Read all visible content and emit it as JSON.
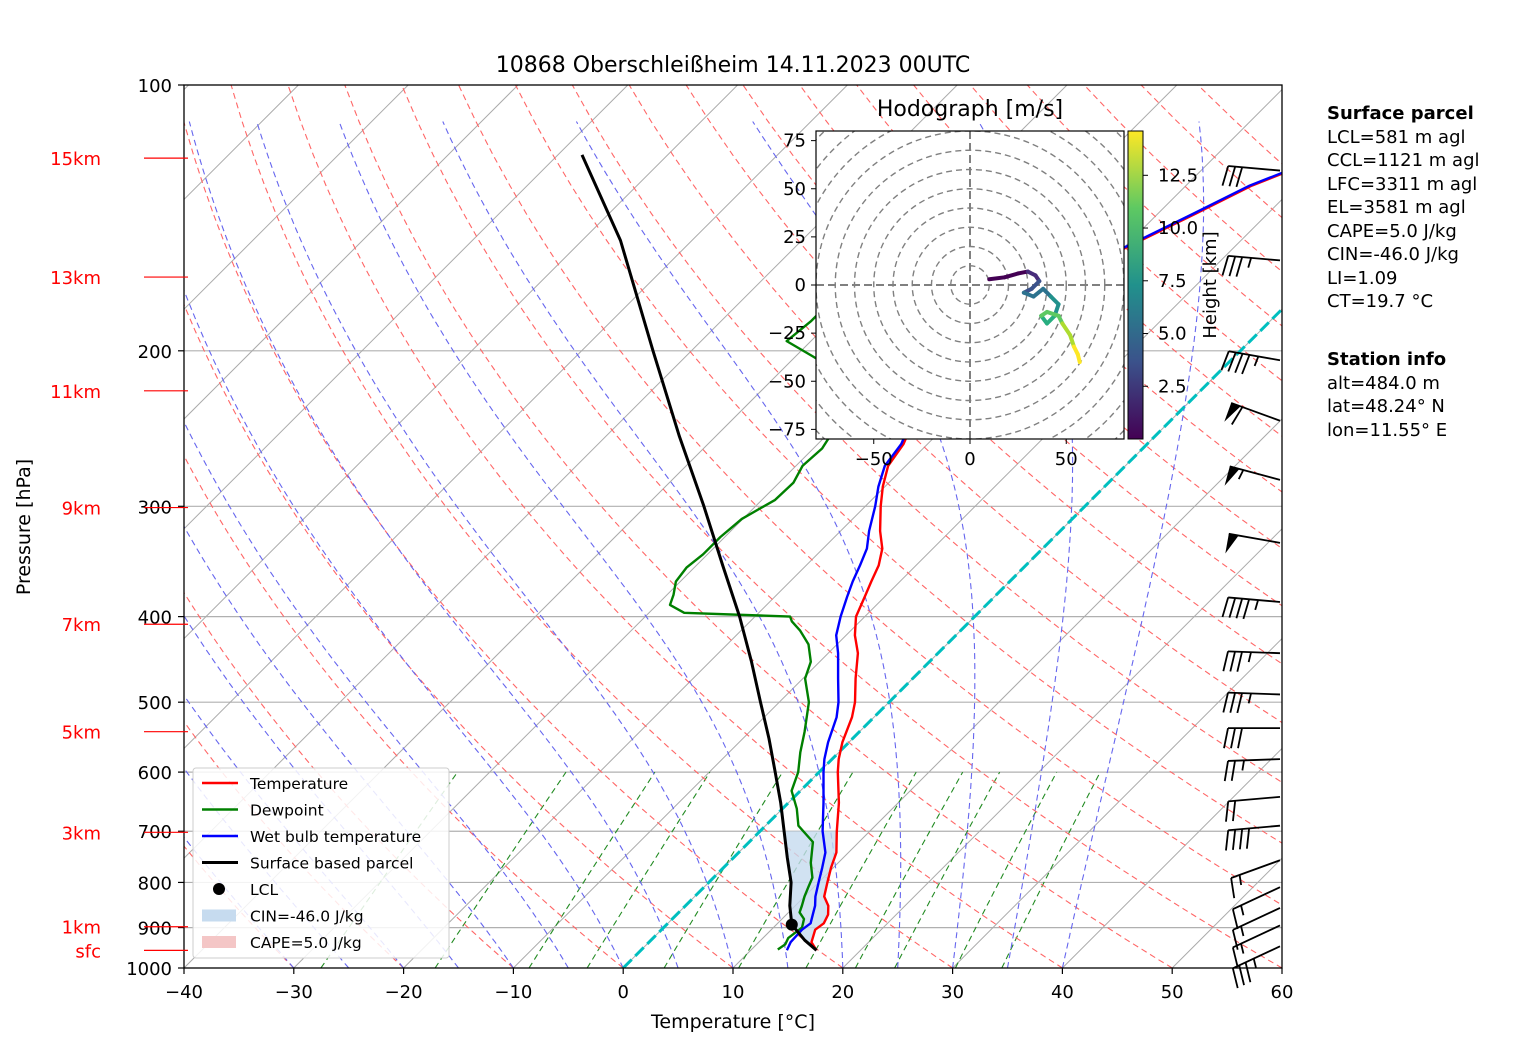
{
  "title": "10868 Oberschleißheim 14.11.2023 00UTC",
  "colors": {
    "temperature": "#ff0000",
    "dewpoint": "#008000",
    "wetbulb": "#0000ff",
    "parcel": "#000000",
    "heights": "#ff0000",
    "dry_adiabat": "#ff6666",
    "moist_adiabat": "#6666ee",
    "mixing_ratio": "#228b22",
    "isotherm": "#aaaaaa",
    "zero_isotherm": "#00bfbf",
    "cin_fill": "#c6dbef",
    "cape_fill": "#f4c6c6"
  },
  "chart_data": {
    "type": "line",
    "subtype": "skew-t log-p diagram",
    "title": "10868 Oberschleißheim 14.11.2023 00UTC",
    "xlabel": "Temperature [°C]",
    "ylabel": "Pressure [hPa]",
    "xlim": [
      -40,
      60
    ],
    "ylim": [
      1000,
      100
    ],
    "y_scale": "log",
    "grid": true,
    "x_ticks": [
      "−40",
      "−30",
      "−20",
      "−10",
      "0",
      "10",
      "20",
      "30",
      "40",
      "50",
      "60"
    ],
    "y_ticks": [
      {
        "p": 100,
        "label": "100"
      },
      {
        "p": 200,
        "label": "200"
      },
      {
        "p": 300,
        "label": "300"
      },
      {
        "p": 400,
        "label": "400"
      },
      {
        "p": 500,
        "label": "500"
      },
      {
        "p": 600,
        "label": "600"
      },
      {
        "p": 700,
        "label": "700"
      },
      {
        "p": 800,
        "label": "800"
      },
      {
        "p": 900,
        "label": "900"
      },
      {
        "p": 1000,
        "label": "1000"
      }
    ],
    "height_labels": [
      {
        "label": "15km",
        "p": 121
      },
      {
        "label": "13km",
        "p": 165
      },
      {
        "label": "11km",
        "p": 222
      },
      {
        "label": "9km",
        "p": 301
      },
      {
        "label": "7km",
        "p": 408
      },
      {
        "label": "5km",
        "p": 540
      },
      {
        "label": "3km",
        "p": 702
      },
      {
        "label": "1km",
        "p": 898
      },
      {
        "label": "sfc",
        "p": 955
      }
    ],
    "legend_position": "lower-left",
    "legend": [
      {
        "label": "Temperature",
        "kind": "line",
        "color": "#ff0000"
      },
      {
        "label": "Dewpoint",
        "kind": "line",
        "color": "#008000"
      },
      {
        "label": "Wet bulb temperature",
        "kind": "line",
        "color": "#0000ff"
      },
      {
        "label": "Surface based parcel",
        "kind": "line",
        "color": "#000000"
      },
      {
        "label": "LCL",
        "kind": "dot",
        "color": "#000000"
      },
      {
        "label": "CIN=-46.0 J/kg",
        "kind": "patch",
        "color": "#c6dbef"
      },
      {
        "label": "CAPE=5.0 J/kg",
        "kind": "patch",
        "color": "#f4c6c6"
      }
    ],
    "series": [
      {
        "key": "temperature",
        "points": [
          [
            955,
            16.0
          ],
          [
            935,
            14.8
          ],
          [
            905,
            14.0
          ],
          [
            890,
            14.2
          ],
          [
            870,
            13.8
          ],
          [
            850,
            13.0
          ],
          [
            830,
            11.8
          ],
          [
            800,
            10.8
          ],
          [
            770,
            9.8
          ],
          [
            740,
            8.9
          ],
          [
            700,
            7.0
          ],
          [
            650,
            4.6
          ],
          [
            600,
            1.7
          ],
          [
            580,
            0.6
          ],
          [
            555,
            -0.6
          ],
          [
            520,
            -2.0
          ],
          [
            500,
            -3.1
          ],
          [
            470,
            -5.2
          ],
          [
            440,
            -7.3
          ],
          [
            420,
            -9.2
          ],
          [
            400,
            -10.8
          ],
          [
            380,
            -11.8
          ],
          [
            365,
            -12.6
          ],
          [
            350,
            -13.4
          ],
          [
            335,
            -14.6
          ],
          [
            320,
            -16.4
          ],
          [
            300,
            -18.6
          ],
          [
            285,
            -20.2
          ],
          [
            270,
            -21.6
          ],
          [
            255,
            -22.2
          ],
          [
            240,
            -23.4
          ],
          [
            225,
            -25.4
          ],
          [
            214,
            -26.4
          ],
          [
            205,
            -25.6
          ],
          [
            197,
            -23.4
          ],
          [
            185,
            -23.2
          ],
          [
            178,
            -24.0
          ],
          [
            172,
            -24.2
          ],
          [
            162,
            -22.2
          ],
          [
            152,
            -19.6
          ],
          [
            140,
            -16.6
          ],
          [
            130,
            -14.0
          ],
          [
            122,
            -10.6
          ],
          [
            116,
            -8.4
          ],
          [
            111,
            -7.4
          ],
          [
            108,
            -7.8
          ]
        ]
      },
      {
        "key": "dewpoint",
        "points": [
          [
            953,
            12.4
          ],
          [
            940,
            12.6
          ],
          [
            925,
            12.3
          ],
          [
            900,
            12.6
          ],
          [
            880,
            12.0
          ],
          [
            865,
            11.0
          ],
          [
            850,
            10.6
          ],
          [
            830,
            10.0
          ],
          [
            810,
            9.5
          ],
          [
            790,
            9.0
          ],
          [
            760,
            7.5
          ],
          [
            720,
            5.8
          ],
          [
            690,
            3.0
          ],
          [
            660,
            1.3
          ],
          [
            630,
            -0.8
          ],
          [
            600,
            -1.9
          ],
          [
            570,
            -3.5
          ],
          [
            540,
            -5.0
          ],
          [
            500,
            -7.3
          ],
          [
            470,
            -9.8
          ],
          [
            450,
            -10.8
          ],
          [
            430,
            -12.6
          ],
          [
            415,
            -14.6
          ],
          [
            405,
            -16.2
          ],
          [
            400,
            -16.8
          ],
          [
            396,
            -26.8
          ],
          [
            388,
            -28.8
          ],
          [
            378,
            -29.4
          ],
          [
            365,
            -30.4
          ],
          [
            352,
            -30.7
          ],
          [
            340,
            -30.4
          ],
          [
            325,
            -30.4
          ],
          [
            310,
            -30.1
          ],
          [
            295,
            -28.8
          ],
          [
            282,
            -28.7
          ],
          [
            270,
            -29.4
          ],
          [
            258,
            -29.2
          ],
          [
            246,
            -29.8
          ],
          [
            235,
            -31.2
          ],
          [
            223,
            -32.4
          ],
          [
            212,
            -34.4
          ],
          [
            203,
            -38.4
          ],
          [
            195,
            -42.2
          ],
          [
            185,
            -41.8
          ],
          [
            172,
            -41.8
          ],
          [
            160,
            -42.2
          ],
          [
            145,
            -40.8
          ],
          [
            133,
            -38.0
          ],
          [
            122,
            -35.6
          ],
          [
            115,
            -34.4
          ]
        ]
      },
      {
        "key": "wetbulb",
        "points": [
          [
            955,
            13.3
          ],
          [
            935,
            12.9
          ],
          [
            905,
            12.8
          ],
          [
            890,
            13.0
          ],
          [
            870,
            12.4
          ],
          [
            850,
            11.8
          ],
          [
            830,
            11.0
          ],
          [
            800,
            10.0
          ],
          [
            770,
            9.0
          ],
          [
            740,
            7.9
          ],
          [
            700,
            5.7
          ],
          [
            650,
            3.2
          ],
          [
            600,
            0.4
          ],
          [
            580,
            -0.7
          ],
          [
            555,
            -1.9
          ],
          [
            520,
            -3.4
          ],
          [
            500,
            -4.6
          ],
          [
            470,
            -6.8
          ],
          [
            440,
            -9.1
          ],
          [
            420,
            -10.9
          ],
          [
            400,
            -12.2
          ],
          [
            380,
            -13.4
          ],
          [
            365,
            -14.3
          ],
          [
            350,
            -15.1
          ],
          [
            335,
            -16.0
          ],
          [
            320,
            -17.4
          ],
          [
            300,
            -19.1
          ],
          [
            285,
            -20.6
          ],
          [
            270,
            -21.9
          ],
          [
            255,
            -22.4
          ],
          [
            240,
            -23.6
          ],
          [
            225,
            -25.7
          ],
          [
            214,
            -26.6
          ],
          [
            205,
            -25.8
          ],
          [
            197,
            -23.6
          ],
          [
            185,
            -23.4
          ],
          [
            178,
            -24.2
          ],
          [
            172,
            -24.4
          ],
          [
            162,
            -22.4
          ],
          [
            152,
            -19.8
          ],
          [
            140,
            -16.8
          ],
          [
            130,
            -14.2
          ],
          [
            122,
            -10.8
          ],
          [
            116,
            -8.6
          ],
          [
            111,
            -7.6
          ],
          [
            108,
            -8.0
          ]
        ]
      },
      {
        "key": "parcel",
        "points": [
          [
            955,
            16.0
          ],
          [
            930,
            14.0
          ],
          [
            893,
            11.4
          ],
          [
            850,
            9.5
          ],
          [
            800,
            7.5
          ],
          [
            750,
            4.9
          ],
          [
            700,
            2.2
          ],
          [
            650,
            -0.7
          ],
          [
            600,
            -4.0
          ],
          [
            550,
            -7.6
          ],
          [
            500,
            -11.7
          ],
          [
            450,
            -16.2
          ],
          [
            400,
            -21.4
          ],
          [
            350,
            -27.6
          ],
          [
            300,
            -34.7
          ],
          [
            250,
            -43.3
          ],
          [
            200,
            -53.5
          ],
          [
            150,
            -66.5
          ],
          [
            120,
            -77.8
          ]
        ]
      }
    ],
    "lcl": {
      "p": 893,
      "t": 11.4,
      "label": "LCL"
    }
  },
  "hodograph": {
    "title": "Hodograph [m/s]",
    "xlim": [
      -80,
      80
    ],
    "ylim": [
      -80,
      80
    ],
    "x_ticks": [
      "−50",
      "0",
      "50"
    ],
    "y_ticks": [
      "75",
      "50",
      "25",
      "0",
      "−25",
      "−50",
      "−75"
    ],
    "colorbar_label": "Height [km]",
    "colorbar_ticks": [
      "2.5",
      "5.0",
      "7.5",
      "10.0",
      "12.5"
    ],
    "points": [
      [
        10,
        3
      ],
      [
        18,
        4
      ],
      [
        25,
        6
      ],
      [
        30,
        7
      ],
      [
        34,
        5
      ],
      [
        36,
        2
      ],
      [
        32,
        -2
      ],
      [
        28,
        -4
      ],
      [
        33,
        -6
      ],
      [
        38,
        -2
      ],
      [
        42,
        -6
      ],
      [
        46,
        -10
      ],
      [
        44,
        -16
      ],
      [
        40,
        -20
      ],
      [
        37,
        -16
      ],
      [
        40,
        -14
      ],
      [
        46,
        -16
      ],
      [
        48,
        -20
      ],
      [
        52,
        -26
      ],
      [
        54,
        -32
      ],
      [
        56,
        -36
      ],
      [
        57,
        -40
      ]
    ]
  },
  "wind_barbs": [
    {
      "p": 125,
      "speed": 30,
      "dir": 275
    },
    {
      "p": 158,
      "speed": 35,
      "dir": 275
    },
    {
      "p": 205,
      "speed": 45,
      "dir": 280
    },
    {
      "p": 240,
      "speed": 60,
      "dir": 290
    },
    {
      "p": 280,
      "speed": 55,
      "dir": 285
    },
    {
      "p": 330,
      "speed": 50,
      "dir": 280
    },
    {
      "p": 385,
      "speed": 45,
      "dir": 275
    },
    {
      "p": 440,
      "speed": 35,
      "dir": 272
    },
    {
      "p": 490,
      "speed": 35,
      "dir": 272
    },
    {
      "p": 535,
      "speed": 30,
      "dir": 270
    },
    {
      "p": 580,
      "speed": 25,
      "dir": 268
    },
    {
      "p": 640,
      "speed": 20,
      "dir": 265
    },
    {
      "p": 690,
      "speed": 40,
      "dir": 265
    },
    {
      "p": 755,
      "speed": 15,
      "dir": 250
    },
    {
      "p": 810,
      "speed": 15,
      "dir": 245
    },
    {
      "p": 855,
      "speed": 15,
      "dir": 245
    },
    {
      "p": 895,
      "speed": 15,
      "dir": 245
    },
    {
      "p": 945,
      "speed": 35,
      "dir": 245
    }
  ],
  "surface_parcel": {
    "heading": "Surface parcel",
    "lines": [
      "LCL=581 m agl",
      "CCL=1121 m agl",
      "LFC=3311 m agl",
      "EL=3581 m agl",
      "CAPE=5.0 J/kg",
      "CIN=-46.0 J/kg",
      "LI=1.09",
      "CT=19.7 °C"
    ]
  },
  "station_info": {
    "heading": "Station info",
    "lines": [
      "alt=484.0 m",
      "lat=48.24° N",
      "lon=11.55° E"
    ]
  }
}
